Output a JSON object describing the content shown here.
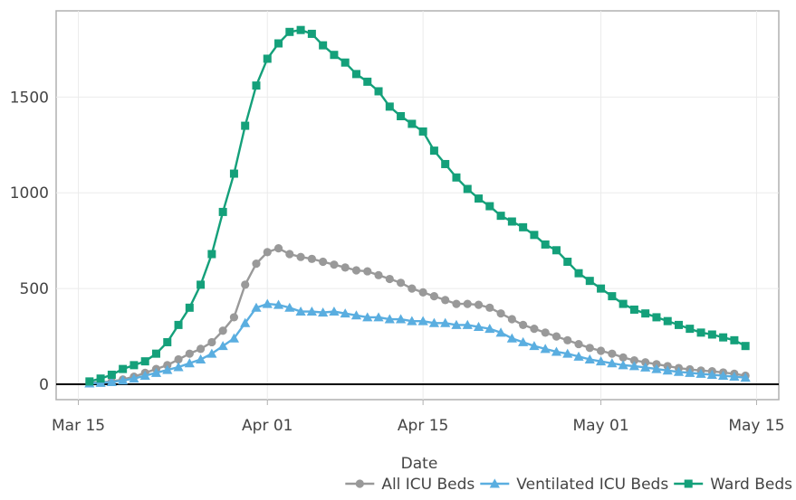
{
  "chart_data": {
    "type": "line",
    "title": "",
    "xlabel": "Date",
    "ylabel": "",
    "x_axis": {
      "ticks": [
        "Mar 15",
        "Apr 01",
        "Apr 15",
        "May 01",
        "May 15"
      ],
      "tick_dates": [
        "2020-03-15",
        "2020-04-01",
        "2020-04-15",
        "2020-05-01",
        "2020-05-15"
      ],
      "range": [
        "2020-03-13",
        "2020-05-17"
      ]
    },
    "y_axis": {
      "ticks": [
        "0",
        "500",
        "1000",
        "1500"
      ],
      "tick_values": [
        0,
        500,
        1000,
        1500
      ],
      "range": [
        -80,
        1950
      ]
    },
    "grid": true,
    "legend_position": "bottom-right",
    "dates": [
      "2020-03-16",
      "2020-03-17",
      "2020-03-18",
      "2020-03-19",
      "2020-03-20",
      "2020-03-21",
      "2020-03-22",
      "2020-03-23",
      "2020-03-24",
      "2020-03-25",
      "2020-03-26",
      "2020-03-27",
      "2020-03-28",
      "2020-03-29",
      "2020-03-30",
      "2020-03-31",
      "2020-04-01",
      "2020-04-02",
      "2020-04-03",
      "2020-04-04",
      "2020-04-05",
      "2020-04-06",
      "2020-04-07",
      "2020-04-08",
      "2020-04-09",
      "2020-04-10",
      "2020-04-11",
      "2020-04-12",
      "2020-04-13",
      "2020-04-14",
      "2020-04-15",
      "2020-04-16",
      "2020-04-17",
      "2020-04-18",
      "2020-04-19",
      "2020-04-20",
      "2020-04-21",
      "2020-04-22",
      "2020-04-23",
      "2020-04-24",
      "2020-04-25",
      "2020-04-26",
      "2020-04-27",
      "2020-04-28",
      "2020-04-29",
      "2020-04-30",
      "2020-05-01",
      "2020-05-02",
      "2020-05-03",
      "2020-05-04",
      "2020-05-05",
      "2020-05-06",
      "2020-05-07",
      "2020-05-08",
      "2020-05-09",
      "2020-05-10",
      "2020-05-11",
      "2020-05-12",
      "2020-05-13",
      "2020-05-14"
    ],
    "series": [
      {
        "name": "All ICU Beds",
        "color": "#999999",
        "marker": "circle",
        "values": [
          8,
          10,
          15,
          25,
          40,
          60,
          80,
          100,
          130,
          160,
          185,
          220,
          280,
          350,
          520,
          630,
          690,
          710,
          680,
          665,
          655,
          640,
          625,
          610,
          595,
          590,
          570,
          550,
          530,
          500,
          480,
          460,
          440,
          420,
          420,
          415,
          400,
          370,
          340,
          310,
          290,
          270,
          250,
          230,
          210,
          190,
          175,
          160,
          140,
          125,
          115,
          105,
          95,
          85,
          78,
          72,
          68,
          62,
          55,
          45
        ]
      },
      {
        "name": "Ventilated ICU Beds",
        "color": "#5aaee0",
        "marker": "triangle",
        "values": [
          5,
          8,
          12,
          20,
          30,
          45,
          60,
          75,
          90,
          110,
          130,
          160,
          200,
          240,
          320,
          400,
          420,
          415,
          400,
          380,
          380,
          375,
          380,
          370,
          360,
          350,
          350,
          340,
          340,
          330,
          330,
          320,
          320,
          310,
          310,
          300,
          290,
          270,
          240,
          220,
          200,
          185,
          170,
          160,
          145,
          130,
          120,
          110,
          100,
          95,
          88,
          80,
          72,
          65,
          60,
          55,
          50,
          45,
          40,
          35
        ]
      },
      {
        "name": "Ward Beds",
        "color": "#14a07a",
        "marker": "square",
        "values": [
          15,
          30,
          50,
          80,
          100,
          120,
          160,
          220,
          310,
          400,
          520,
          680,
          900,
          1100,
          1350,
          1560,
          1700,
          1780,
          1840,
          1850,
          1830,
          1770,
          1720,
          1680,
          1620,
          1580,
          1530,
          1450,
          1400,
          1360,
          1320,
          1220,
          1150,
          1080,
          1020,
          970,
          930,
          880,
          850,
          820,
          780,
          730,
          700,
          640,
          580,
          540,
          500,
          460,
          420,
          390,
          370,
          350,
          330,
          310,
          290,
          270,
          260,
          245,
          230,
          200
        ]
      }
    ]
  }
}
